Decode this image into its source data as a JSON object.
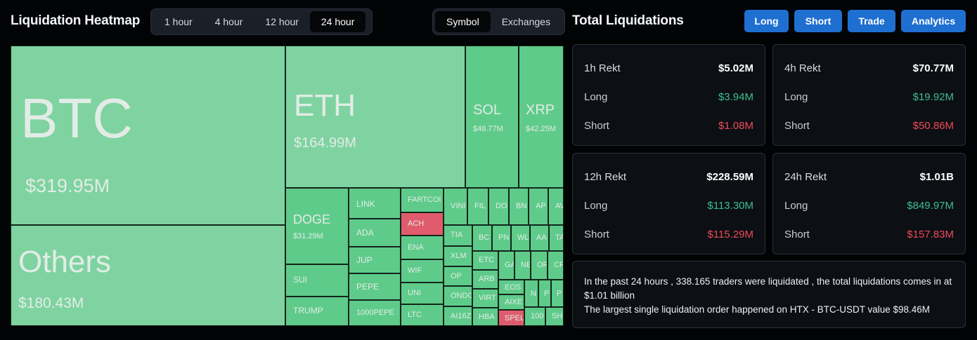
{
  "heatmap": {
    "title": "Liquidation Heatmap",
    "time_tabs": [
      "1 hour",
      "4 hour",
      "12 hour",
      "24 hour"
    ],
    "active_time": "24 hour",
    "view_tabs": [
      "Symbol",
      "Exchanges"
    ],
    "active_view": "Symbol",
    "tiles": {
      "btc": {
        "symbol": "BTC",
        "value": "$319.95M"
      },
      "others": {
        "symbol": "Others",
        "value": "$180.43M"
      },
      "eth": {
        "symbol": "ETH",
        "value": "$164.99M"
      },
      "sol": {
        "symbol": "SOL",
        "value": "$48.77M"
      },
      "xrp": {
        "symbol": "XRP",
        "value": "$42.25M"
      },
      "doge": {
        "symbol": "DOGE",
        "value": "$31.29M"
      },
      "sui": {
        "symbol": "SUI"
      },
      "trump": {
        "symbol": "TRUMP"
      },
      "link": {
        "symbol": "LINK"
      },
      "ada": {
        "symbol": "ADA"
      },
      "jup": {
        "symbol": "JUP"
      },
      "pepe": {
        "symbol": "PEPE"
      },
      "pepe1000": {
        "symbol": "1000PEPE"
      },
      "fartcoin": {
        "symbol": "FARTCOI"
      },
      "ach": {
        "symbol": "ACH"
      },
      "ena": {
        "symbol": "ENA"
      },
      "wif": {
        "symbol": "WIF"
      },
      "uni": {
        "symbol": "UNI"
      },
      "ltc": {
        "symbol": "LTC"
      },
      "vine": {
        "symbol": "VINI"
      },
      "fil": {
        "symbol": "FIL"
      },
      "dot": {
        "symbol": "DO"
      },
      "bnb": {
        "symbol": "BN"
      },
      "apt": {
        "symbol": "AP"
      },
      "avax": {
        "symbol": "AV"
      },
      "tia": {
        "symbol": "TIA"
      },
      "xlm": {
        "symbol": "XLM"
      },
      "op": {
        "symbol": "OP"
      },
      "ondo": {
        "symbol": "ONDO"
      },
      "ai16z": {
        "symbol": "AI16Z"
      },
      "bch": {
        "symbol": "BC"
      },
      "pnut": {
        "symbol": "PN"
      },
      "wld": {
        "symbol": "WL"
      },
      "aave": {
        "symbol": "AA"
      },
      "tao": {
        "symbol": "TA"
      },
      "etc": {
        "symbol": "ETC"
      },
      "arb": {
        "symbol": "ARB"
      },
      "virtual": {
        "symbol": "VIRT"
      },
      "hbar": {
        "symbol": "HBA"
      },
      "ga": {
        "symbol": "GA"
      },
      "ne": {
        "symbol": "NE"
      },
      "or": {
        "symbol": "OR"
      },
      "cr": {
        "symbol": "CR"
      },
      "eos": {
        "symbol": "EOS"
      },
      "aixbt": {
        "symbol": "AIXE"
      },
      "spell": {
        "symbol": "SPEL"
      },
      "n": {
        "symbol": "N"
      },
      "p": {
        "symbol": "P"
      },
      "p2": {
        "symbol": "P"
      },
      "hundred": {
        "symbol": "100"
      },
      "sh": {
        "symbol": "SH"
      }
    }
  },
  "totals": {
    "title": "Total Liquidations",
    "buttons": [
      "Long",
      "Short",
      "Trade",
      "Analytics"
    ],
    "cards": [
      {
        "label": "1h Rekt",
        "total": "$5.02M",
        "long_label": "Long",
        "long": "$3.94M",
        "short_label": "Short",
        "short": "$1.08M"
      },
      {
        "label": "4h Rekt",
        "total": "$70.77M",
        "long_label": "Long",
        "long": "$19.92M",
        "short_label": "Short",
        "short": "$50.86M"
      },
      {
        "label": "12h Rekt",
        "total": "$228.59M",
        "long_label": "Long",
        "long": "$113.30M",
        "short_label": "Short",
        "short": "$115.29M"
      },
      {
        "label": "24h Rekt",
        "total": "$1.01B",
        "long_label": "Long",
        "long": "$849.97M",
        "short_label": "Short",
        "short": "$157.83M"
      }
    ],
    "summary_line1": "In the past 24 hours , 338.165 traders were liquidated , the total liquidations comes in at $1.01 billion",
    "summary_line2": "The largest single liquidation order happened on HTX - BTC-USDT value $98.46M"
  },
  "colors": {
    "accent_button": "#1f6fd1",
    "tile_light": "#7fd3a0",
    "tile_mid": "#5fcb8a",
    "tile_red": "#e05c6c",
    "long_green": "#3fbf8f",
    "short_red": "#ef4a5a"
  }
}
